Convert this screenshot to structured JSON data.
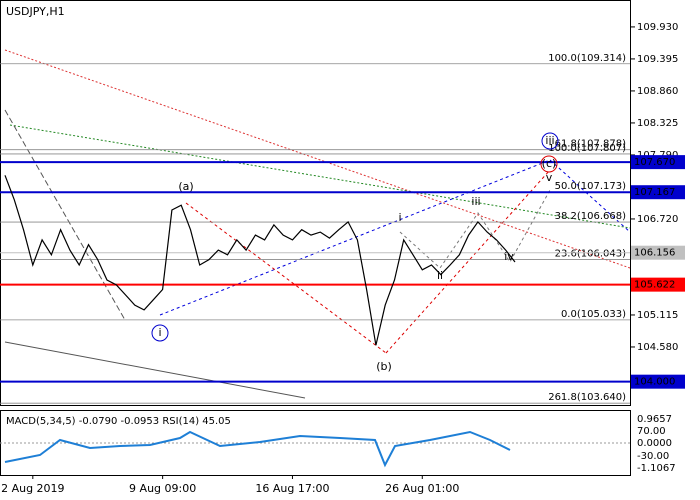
{
  "chart_data": {
    "type": "line",
    "title": "USDJPY,H1",
    "ylim": [
      103.61,
      110.38
    ],
    "yticks": [
      {
        "value": 109.93,
        "label": "109.930"
      },
      109.395,
      {
        "value": 108.86,
        "label": "108.860"
      },
      108.325,
      {
        "value": 107.79,
        "label": "107.790"
      },
      {
        "value": 106.72,
        "label": "106.720"
      },
      105.115,
      {
        "value": 104.58,
        "label": "104.580"
      }
    ],
    "categories": [
      null,
      null,
      null,
      "2 Aug 2019",
      null,
      null,
      null,
      null,
      null,
      null,
      null,
      null,
      null,
      null,
      null,
      null,
      null,
      "9 Aug 09:00",
      null,
      null,
      null,
      null,
      null,
      null,
      null,
      null,
      null,
      null,
      null,
      null,
      null,
      "16 Aug 17:00",
      null,
      null,
      null,
      null,
      null,
      null,
      null,
      null,
      null,
      null,
      null,
      null,
      null,
      "26 Aug 01:00",
      null,
      null,
      null,
      null,
      null,
      null,
      null,
      null,
      null,
      null
    ],
    "series": [
      {
        "name": "USDJPY",
        "color": "#000000",
        "values": [
          107.45,
          107.04,
          106.54,
          105.95,
          106.37,
          106.12,
          106.54,
          106.2,
          105.95,
          106.29,
          106.04,
          105.7,
          105.62,
          105.45,
          105.28,
          105.2,
          105.37,
          105.54,
          106.87,
          106.95,
          106.54,
          105.95,
          106.04,
          106.2,
          106.12,
          106.37,
          106.2,
          106.45,
          106.37,
          106.62,
          106.45,
          106.37,
          106.54,
          106.45,
          106.5,
          106.4,
          106.54,
          106.67,
          106.37,
          105.54,
          104.61,
          105.28,
          105.7,
          106.37,
          106.12,
          105.87,
          105.95,
          105.79,
          105.95,
          106.12,
          106.45,
          106.67,
          106.5,
          106.37,
          106.2,
          106.0
        ]
      }
    ],
    "levels": [
      {
        "value": 107.67,
        "label": "107.670",
        "color": "#0000cc"
      },
      {
        "value": 107.167,
        "label": "107.167",
        "color": "#0000cc"
      },
      {
        "value": 106.156,
        "label": "106.156",
        "color": "#c0c0c0"
      },
      {
        "value": 105.622,
        "label": "105.622",
        "color": "#ff0000"
      },
      {
        "value": 104.0,
        "label": "104.000",
        "color": "#0000cc"
      }
    ],
    "fib_levels": [
      {
        "value": 109.314,
        "label": "100.0(109.314)"
      },
      {
        "value": 107.878,
        "label": "61.8(107.878)"
      },
      {
        "value": 107.807,
        "label": "100.0(107.807)"
      },
      {
        "value": 107.173,
        "label": "50.0(107.173)"
      },
      {
        "value": 106.668,
        "label": "38.2(106.668)"
      },
      {
        "value": 106.043,
        "label": "23.6(106.043)"
      },
      {
        "value": 105.033,
        "label": "0.0(105.033)"
      },
      {
        "value": 103.64,
        "label": "261.8(103.640)"
      }
    ],
    "wave_labels": [
      "(a)",
      "(b)",
      "(c)",
      "i",
      "ii",
      "iii",
      "iv",
      "v",
      "i",
      "iii"
    ],
    "indicator": {
      "text": "MACD(5,34,5) -0.0790 -0.0953 RSI(14) 45.05",
      "labels": [
        "0.9657",
        "70.00",
        "0.0000",
        "-30.00",
        "-1.1067"
      ]
    }
  }
}
